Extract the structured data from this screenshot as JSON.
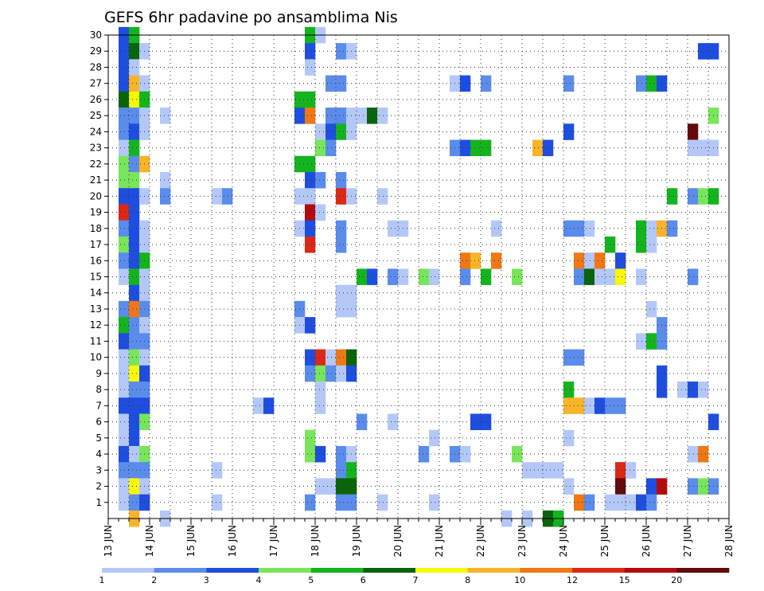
{
  "chart_data": {
    "type": "heatmap",
    "title": "GEFS 6hr padavine po ansamblima Nis",
    "xlabel": "",
    "ylabel": "",
    "x_ticks": [
      "13 JUN",
      "14 JUN",
      "15 JUN",
      "16 JUN",
      "17 JUN",
      "18 JUN",
      "19 JUN",
      "20 JUN",
      "21 JUN",
      "22 JUN",
      "23 JUN",
      "24 JUN",
      "25 JUN",
      "26 JUN",
      "27 JUN",
      "28 JUN"
    ],
    "y_ticks": [
      "1",
      "2",
      "3",
      "4",
      "5",
      "6",
      "7",
      "8",
      "9",
      "10",
      "11",
      "12",
      "13",
      "14",
      "15",
      "16",
      "17",
      "18",
      "19",
      "20",
      "21",
      "22",
      "23",
      "24",
      "25",
      "26",
      "27",
      "28",
      "29",
      "30"
    ],
    "y_range": [
      0,
      30
    ],
    "x_steps_per_day": 4,
    "x_step_count": 60,
    "grid": true,
    "grid_style": "dotted",
    "colorbar": {
      "placement": "bottom",
      "labels": [
        "1",
        "2",
        "3",
        "4",
        "5",
        "6",
        "7",
        "8",
        "10",
        "12",
        "15",
        "20"
      ],
      "colors": [
        "#b4c8f8",
        "#5a8cec",
        "#1e4ee0",
        "#78e65a",
        "#14b41e",
        "#0a640a",
        "#f8f800",
        "#f8b428",
        "#f07814",
        "#dc2814",
        "#b40a0a",
        "#640a0a"
      ]
    },
    "cells": [
      [
        1,
        30,
        3
      ],
      [
        1,
        29,
        3
      ],
      [
        1,
        28,
        3
      ],
      [
        1,
        27,
        3
      ],
      [
        1,
        26,
        6
      ],
      [
        1,
        25,
        2
      ],
      [
        1,
        24,
        2
      ],
      [
        1,
        23,
        1
      ],
      [
        1,
        22,
        4
      ],
      [
        1,
        21,
        4
      ],
      [
        1,
        20,
        3
      ],
      [
        1,
        19,
        10
      ],
      [
        1,
        18,
        2
      ],
      [
        1,
        17,
        4
      ],
      [
        1,
        16,
        2
      ],
      [
        1,
        15,
        1
      ],
      [
        1,
        13,
        2
      ],
      [
        1,
        12,
        5
      ],
      [
        1,
        11,
        3
      ],
      [
        1,
        10,
        1
      ],
      [
        1,
        9,
        1
      ],
      [
        1,
        8,
        1
      ],
      [
        1,
        7,
        3
      ],
      [
        1,
        6,
        1
      ],
      [
        1,
        5,
        1
      ],
      [
        1,
        4,
        3
      ],
      [
        1,
        3,
        2
      ],
      [
        1,
        2,
        1
      ],
      [
        1,
        1,
        1
      ],
      [
        2,
        30,
        5
      ],
      [
        2,
        29,
        6
      ],
      [
        2,
        28,
        1
      ],
      [
        2,
        27,
        8
      ],
      [
        2,
        26,
        7
      ],
      [
        2,
        25,
        2
      ],
      [
        2,
        24,
        3
      ],
      [
        2,
        23,
        5
      ],
      [
        2,
        22,
        2
      ],
      [
        2,
        21,
        4
      ],
      [
        2,
        20,
        3
      ],
      [
        2,
        19,
        3
      ],
      [
        2,
        18,
        3
      ],
      [
        2,
        17,
        3
      ],
      [
        2,
        16,
        3
      ],
      [
        2,
        15,
        5
      ],
      [
        2,
        14,
        3
      ],
      [
        2,
        13,
        9
      ],
      [
        2,
        12,
        2
      ],
      [
        2,
        11,
        2
      ],
      [
        2,
        10,
        4
      ],
      [
        2,
        9,
        7
      ],
      [
        2,
        8,
        2
      ],
      [
        2,
        7,
        3
      ],
      [
        2,
        6,
        3
      ],
      [
        2,
        5,
        3
      ],
      [
        2,
        4,
        1
      ],
      [
        2,
        3,
        2
      ],
      [
        2,
        2,
        7
      ],
      [
        2,
        1,
        2
      ],
      [
        2,
        0,
        8
      ],
      [
        3,
        29,
        1
      ],
      [
        3,
        27,
        1
      ],
      [
        3,
        26,
        5
      ],
      [
        3,
        25,
        1
      ],
      [
        3,
        24,
        1
      ],
      [
        3,
        22,
        8
      ],
      [
        3,
        20,
        1
      ],
      [
        3,
        18,
        1
      ],
      [
        3,
        17,
        1
      ],
      [
        3,
        16,
        5
      ],
      [
        3,
        15,
        1
      ],
      [
        3,
        14,
        1
      ],
      [
        3,
        13,
        2
      ],
      [
        3,
        12,
        1
      ],
      [
        3,
        11,
        2
      ],
      [
        3,
        10,
        1
      ],
      [
        3,
        9,
        3
      ],
      [
        3,
        8,
        2
      ],
      [
        3,
        7,
        3
      ],
      [
        3,
        6,
        4
      ],
      [
        3,
        4,
        4
      ],
      [
        3,
        3,
        2
      ],
      [
        3,
        2,
        1
      ],
      [
        3,
        1,
        3
      ],
      [
        5,
        25,
        1
      ],
      [
        5,
        21,
        1
      ],
      [
        5,
        20,
        2
      ],
      [
        5,
        0,
        1
      ],
      [
        10,
        20,
        1
      ],
      [
        11,
        20,
        2
      ],
      [
        10,
        3,
        1
      ],
      [
        10,
        1,
        1
      ],
      [
        14,
        7,
        1
      ],
      [
        15,
        7,
        3
      ],
      [
        18,
        26,
        5
      ],
      [
        18,
        25,
        3
      ],
      [
        18,
        22,
        5
      ],
      [
        18,
        20,
        1
      ],
      [
        18,
        18,
        1
      ],
      [
        18,
        13,
        2
      ],
      [
        18,
        12,
        1
      ],
      [
        19,
        30,
        5
      ],
      [
        19,
        29,
        3
      ],
      [
        19,
        28,
        1
      ],
      [
        19,
        26,
        5
      ],
      [
        19,
        25,
        9
      ],
      [
        19,
        22,
        5
      ],
      [
        19,
        21,
        3
      ],
      [
        19,
        20,
        1
      ],
      [
        19,
        19,
        11
      ],
      [
        19,
        18,
        3
      ],
      [
        19,
        17,
        10
      ],
      [
        19,
        12,
        3
      ],
      [
        19,
        10,
        3
      ],
      [
        19,
        9,
        2
      ],
      [
        19,
        5,
        4
      ],
      [
        19,
        4,
        4
      ],
      [
        19,
        1,
        2
      ],
      [
        20,
        30,
        1
      ],
      [
        20,
        24,
        1
      ],
      [
        20,
        23,
        4
      ],
      [
        20,
        21,
        2
      ],
      [
        20,
        19,
        1
      ],
      [
        20,
        10,
        10
      ],
      [
        20,
        9,
        4
      ],
      [
        20,
        8,
        1
      ],
      [
        20,
        7,
        1
      ],
      [
        20,
        4,
        3
      ],
      [
        20,
        2,
        1
      ],
      [
        21,
        27,
        2
      ],
      [
        21,
        25,
        2
      ],
      [
        21,
        24,
        3
      ],
      [
        21,
        23,
        2
      ],
      [
        21,
        10,
        1
      ],
      [
        21,
        9,
        2
      ],
      [
        21,
        2,
        1
      ],
      [
        22,
        29,
        2
      ],
      [
        22,
        27,
        2
      ],
      [
        22,
        25,
        2
      ],
      [
        22,
        24,
        5
      ],
      [
        22,
        21,
        2
      ],
      [
        22,
        20,
        10
      ],
      [
        22,
        18,
        2
      ],
      [
        22,
        17,
        2
      ],
      [
        22,
        14,
        1
      ],
      [
        22,
        13,
        1
      ],
      [
        22,
        10,
        9
      ],
      [
        22,
        9,
        1
      ],
      [
        22,
        4,
        2
      ],
      [
        22,
        3,
        2
      ],
      [
        22,
        2,
        6
      ],
      [
        22,
        1,
        2
      ],
      [
        23,
        29,
        1
      ],
      [
        23,
        25,
        1
      ],
      [
        23,
        24,
        1
      ],
      [
        23,
        20,
        1
      ],
      [
        23,
        14,
        1
      ],
      [
        23,
        13,
        1
      ],
      [
        23,
        10,
        6
      ],
      [
        23,
        9,
        3
      ],
      [
        23,
        4,
        1
      ],
      [
        23,
        3,
        5
      ],
      [
        23,
        2,
        6
      ],
      [
        23,
        1,
        2
      ],
      [
        24,
        25,
        1
      ],
      [
        24,
        15,
        5
      ],
      [
        24,
        6,
        2
      ],
      [
        25,
        25,
        6
      ],
      [
        25,
        15,
        3
      ],
      [
        26,
        25,
        1
      ],
      [
        26,
        20,
        1
      ],
      [
        26,
        1,
        1
      ],
      [
        27,
        18,
        1
      ],
      [
        27,
        15,
        2
      ],
      [
        27,
        6,
        1
      ],
      [
        28,
        18,
        1
      ],
      [
        28,
        15,
        1
      ],
      [
        30,
        15,
        4
      ],
      [
        30,
        4,
        2
      ],
      [
        31,
        15,
        1
      ],
      [
        31,
        5,
        1
      ],
      [
        31,
        1,
        1
      ],
      [
        33,
        27,
        1
      ],
      [
        33,
        23,
        2
      ],
      [
        33,
        4,
        2
      ],
      [
        34,
        27,
        3
      ],
      [
        34,
        23,
        3
      ],
      [
        34,
        16,
        9
      ],
      [
        34,
        15,
        2
      ],
      [
        34,
        4,
        1
      ],
      [
        35,
        23,
        5
      ],
      [
        35,
        16,
        8
      ],
      [
        35,
        6,
        3
      ],
      [
        36,
        27,
        2
      ],
      [
        36,
        23,
        5
      ],
      [
        36,
        15,
        5
      ],
      [
        36,
        6,
        3
      ],
      [
        37,
        18,
        1
      ],
      [
        37,
        16,
        9
      ],
      [
        38,
        0,
        1
      ],
      [
        39,
        4,
        4
      ],
      [
        39,
        15,
        4
      ],
      [
        40,
        0,
        1
      ],
      [
        40,
        3,
        1
      ],
      [
        41,
        23,
        8
      ],
      [
        41,
        3,
        1
      ],
      [
        42,
        23,
        3
      ],
      [
        42,
        0,
        6
      ],
      [
        42,
        3,
        1
      ],
      [
        43,
        0,
        5
      ],
      [
        43,
        3,
        1
      ],
      [
        44,
        27,
        2
      ],
      [
        44,
        24,
        3
      ],
      [
        44,
        18,
        2
      ],
      [
        44,
        10,
        2
      ],
      [
        44,
        8,
        5
      ],
      [
        44,
        7,
        8
      ],
      [
        44,
        5,
        1
      ],
      [
        44,
        2,
        1
      ],
      [
        45,
        18,
        2
      ],
      [
        45,
        16,
        9
      ],
      [
        45,
        15,
        2
      ],
      [
        45,
        10,
        2
      ],
      [
        45,
        7,
        8
      ],
      [
        45,
        1,
        9
      ],
      [
        46,
        18,
        1
      ],
      [
        46,
        16,
        1
      ],
      [
        46,
        15,
        6
      ],
      [
        46,
        7,
        1
      ],
      [
        46,
        1,
        2
      ],
      [
        47,
        16,
        9
      ],
      [
        47,
        15,
        1
      ],
      [
        47,
        7,
        3
      ],
      [
        48,
        17,
        5
      ],
      [
        48,
        15,
        1
      ],
      [
        48,
        7,
        2
      ],
      [
        48,
        1,
        1
      ],
      [
        49,
        16,
        3
      ],
      [
        49,
        15,
        7
      ],
      [
        49,
        7,
        2
      ],
      [
        49,
        3,
        10
      ],
      [
        49,
        2,
        12
      ],
      [
        49,
        1,
        1
      ],
      [
        50,
        3,
        1
      ],
      [
        50,
        1,
        1
      ],
      [
        51,
        27,
        2
      ],
      [
        51,
        18,
        5
      ],
      [
        51,
        17,
        5
      ],
      [
        51,
        15,
        1
      ],
      [
        51,
        11,
        1
      ],
      [
        51,
        1,
        3
      ],
      [
        52,
        27,
        5
      ],
      [
        52,
        18,
        1
      ],
      [
        52,
        17,
        1
      ],
      [
        52,
        13,
        1
      ],
      [
        52,
        11,
        5
      ],
      [
        52,
        2,
        3
      ],
      [
        52,
        1,
        2
      ],
      [
        53,
        27,
        3
      ],
      [
        53,
        18,
        8
      ],
      [
        53,
        12,
        2
      ],
      [
        53,
        11,
        2
      ],
      [
        53,
        9,
        3
      ],
      [
        53,
        8,
        3
      ],
      [
        53,
        2,
        11
      ],
      [
        54,
        18,
        2
      ],
      [
        54,
        20,
        5
      ],
      [
        55,
        8,
        1
      ],
      [
        56,
        24,
        12
      ],
      [
        56,
        23,
        1
      ],
      [
        56,
        20,
        2
      ],
      [
        56,
        15,
        2
      ],
      [
        56,
        8,
        3
      ],
      [
        56,
        4,
        1
      ],
      [
        56,
        2,
        2
      ],
      [
        57,
        29,
        3
      ],
      [
        57,
        23,
        1
      ],
      [
        57,
        20,
        4
      ],
      [
        57,
        8,
        1
      ],
      [
        57,
        4,
        9
      ],
      [
        57,
        2,
        4
      ],
      [
        58,
        29,
        3
      ],
      [
        58,
        25,
        4
      ],
      [
        58,
        23,
        1
      ],
      [
        58,
        20,
        5
      ],
      [
        58,
        6,
        3
      ],
      [
        58,
        2,
        2
      ]
    ]
  }
}
